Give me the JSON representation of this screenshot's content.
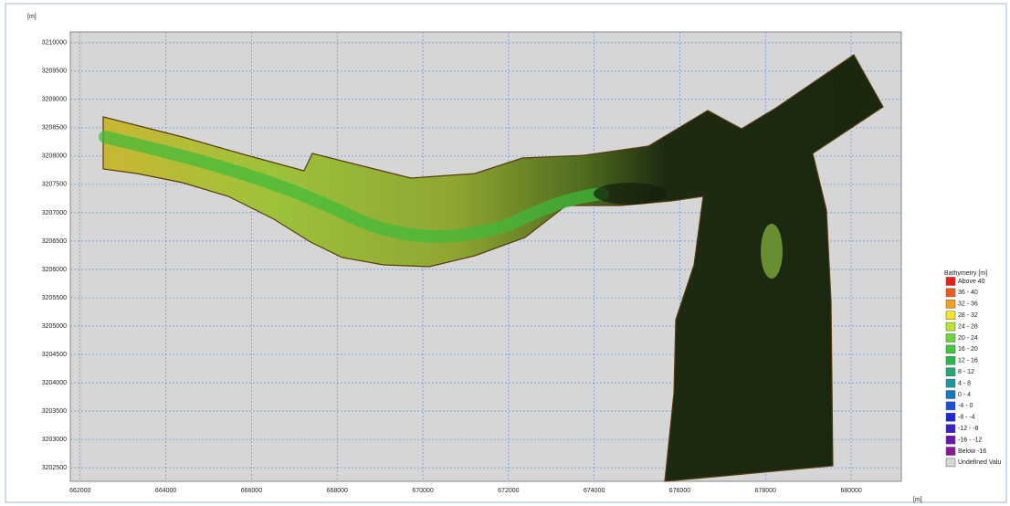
{
  "plot": {
    "y_unit": "[m]",
    "x_unit": "[m]",
    "xlim": [
      661770,
      681170
    ],
    "ylim": [
      3202260,
      3210190
    ],
    "xticks": [
      662000,
      664000,
      666000,
      668000,
      670000,
      672000,
      674000,
      676000,
      678000,
      680000
    ],
    "yticks": [
      3210000,
      3209500,
      3209000,
      3208500,
      3208000,
      3207500,
      3207000,
      3206500,
      3206000,
      3205500,
      3205000,
      3204500,
      3204000,
      3203500,
      3203000,
      3202500
    ],
    "grid": true
  },
  "legend": {
    "title": "Bathymetry [m]",
    "items": [
      {
        "label": "Above 40",
        "color": "#e8201c"
      },
      {
        "label": "36 - 40",
        "color": "#f05a1e"
      },
      {
        "label": "32 - 36",
        "color": "#f5a020"
      },
      {
        "label": "28 - 32",
        "color": "#f2e62a"
      },
      {
        "label": "24 - 28",
        "color": "#b8e432"
      },
      {
        "label": "20 - 24",
        "color": "#6ed83a"
      },
      {
        "label": "16 - 20",
        "color": "#3cc83c"
      },
      {
        "label": "12 - 16",
        "color": "#28b84a"
      },
      {
        "label": "8 - 12",
        "color": "#1ea872"
      },
      {
        "label": "4 - 8",
        "color": "#1898a0"
      },
      {
        "label": "0 - 4",
        "color": "#1478c0"
      },
      {
        "label": "-4 - 0",
        "color": "#1450d8"
      },
      {
        "label": "-8 - -4",
        "color": "#1c28e0"
      },
      {
        "label": "-12 - -8",
        "color": "#4020c8"
      },
      {
        "label": "-16 - -12",
        "color": "#6818b0"
      },
      {
        "label": "Below -16",
        "color": "#881898"
      },
      {
        "label": "Undefined Valu",
        "color": "#d8d8d8"
      }
    ]
  }
}
